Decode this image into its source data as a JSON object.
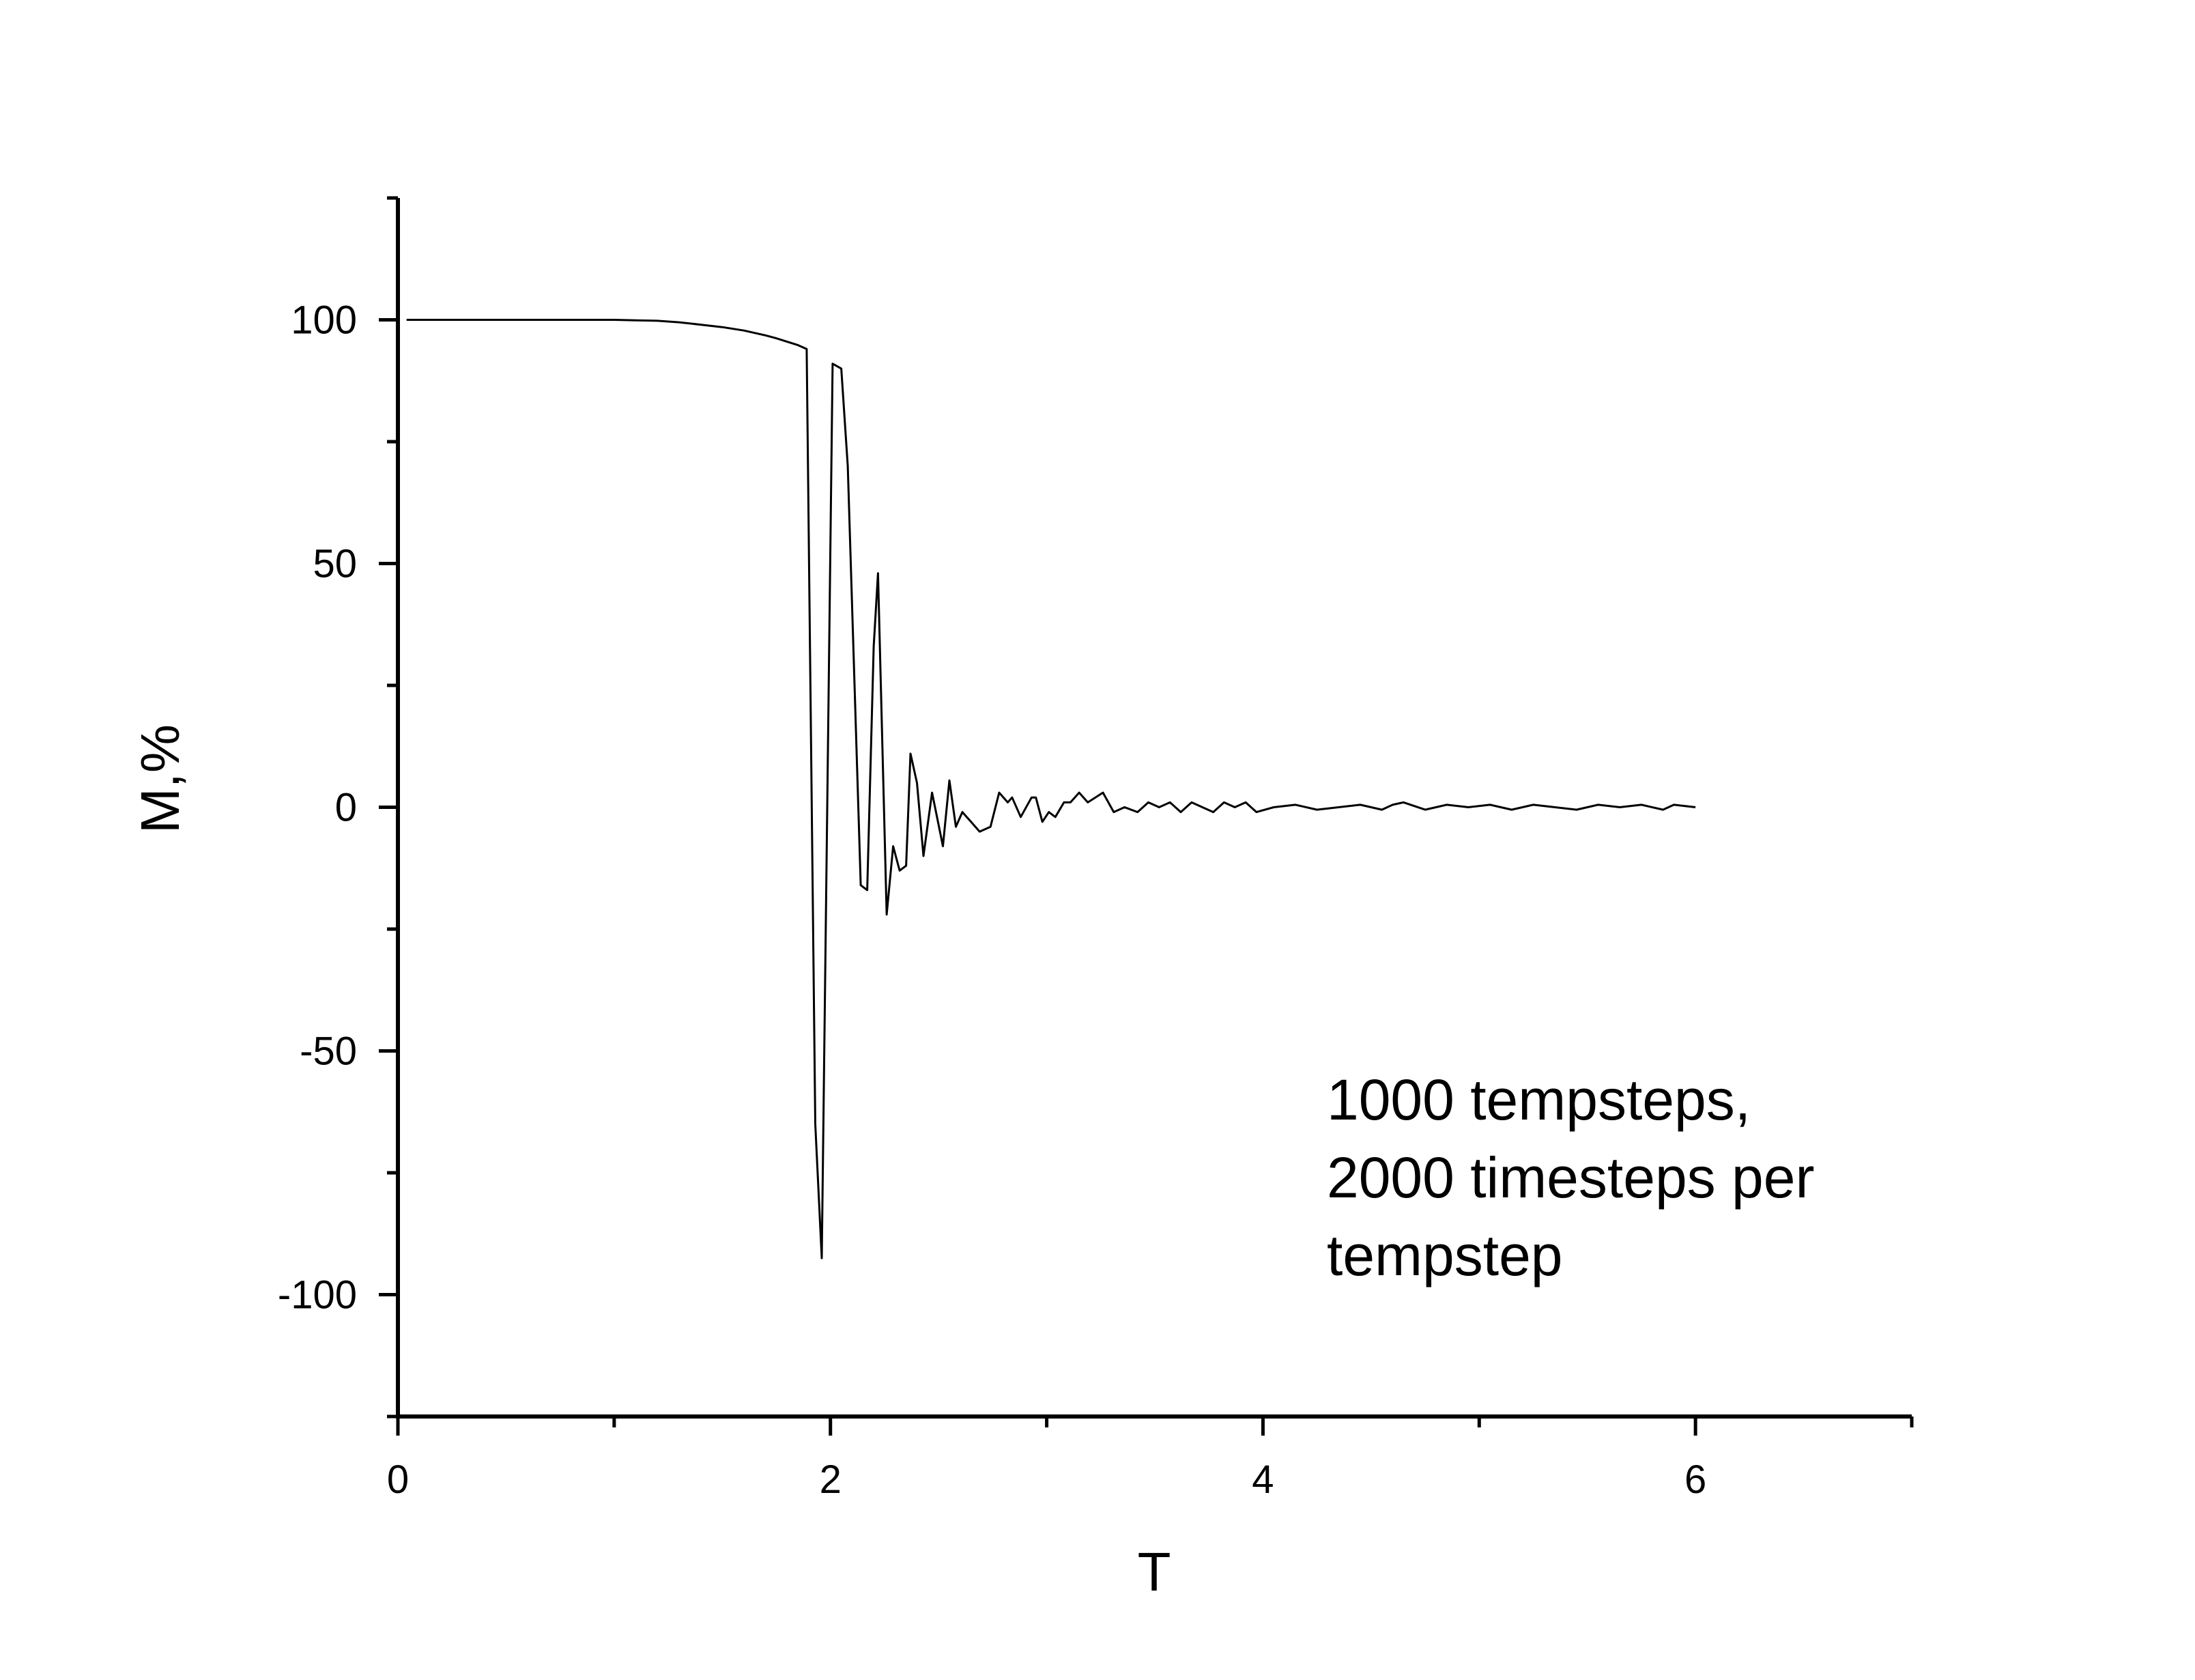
{
  "chart_data": {
    "type": "line",
    "xlabel": "T",
    "ylabel": "M,%",
    "annotation": [
      "1000 tempsteps,",
      "2000 timesteps per",
      "tempstep"
    ],
    "xlim": [
      0,
      7
    ],
    "xticks": [
      0,
      2,
      4,
      6
    ],
    "xminorticks": [
      1,
      3,
      5,
      7
    ],
    "ylim": [
      -125,
      125
    ],
    "yticks": [
      -100,
      -50,
      0,
      50,
      100
    ],
    "yminorticks": [
      -125,
      -75,
      -25,
      25,
      75,
      125
    ],
    "grid": false,
    "series": [
      {
        "color": "#000000",
        "x": [
          0.04,
          0.2,
          0.4,
          0.6,
          0.8,
          1.0,
          1.1,
          1.2,
          1.3,
          1.4,
          1.5,
          1.6,
          1.7,
          1.75,
          1.8,
          1.85,
          1.89,
          1.93,
          1.96,
          2.01,
          2.05,
          2.08,
          2.14,
          2.17,
          2.2,
          2.22,
          2.26,
          2.29,
          2.32,
          2.35,
          2.37,
          2.4,
          2.43,
          2.47,
          2.52,
          2.55,
          2.58,
          2.61,
          2.65,
          2.69,
          2.74,
          2.78,
          2.82,
          2.84,
          2.88,
          2.93,
          2.95,
          2.98,
          3.01,
          3.04,
          3.08,
          3.11,
          3.15,
          3.19,
          3.26,
          3.31,
          3.36,
          3.42,
          3.47,
          3.52,
          3.57,
          3.62,
          3.67,
          3.72,
          3.77,
          3.82,
          3.87,
          3.92,
          3.97,
          4.05,
          4.15,
          4.25,
          4.35,
          4.45,
          4.55,
          4.6,
          4.65,
          4.75,
          4.85,
          4.95,
          5.05,
          5.15,
          5.25,
          5.35,
          5.45,
          5.55,
          5.65,
          5.75,
          5.85,
          5.9,
          6.0
        ],
        "values": [
          100,
          100,
          100,
          100,
          100,
          100,
          99.9,
          99.8,
          99.5,
          99,
          98.5,
          97.8,
          96.8,
          96.2,
          95.5,
          94.8,
          94,
          -65,
          -92.5,
          91,
          90,
          70,
          -16,
          -17,
          33,
          48,
          -22,
          -8,
          -13,
          -12,
          11,
          5,
          -10,
          3,
          -8,
          5.5,
          -4,
          -1,
          -3,
          -5,
          -4,
          3,
          1,
          2,
          -2,
          2,
          2,
          -3,
          -1,
          -2,
          1,
          1,
          3,
          1,
          3,
          -1,
          0,
          -1,
          1,
          0,
          1,
          -1,
          1,
          0,
          -1,
          1,
          0,
          1,
          -1,
          0,
          0.5,
          -0.5,
          0,
          0.5,
          -0.5,
          0.5,
          1,
          -0.5,
          0.5,
          0,
          0.5,
          -0.5,
          0.5,
          0,
          -0.5,
          0.5,
          0,
          0.5,
          -0.5,
          0.5,
          0
        ]
      }
    ]
  }
}
